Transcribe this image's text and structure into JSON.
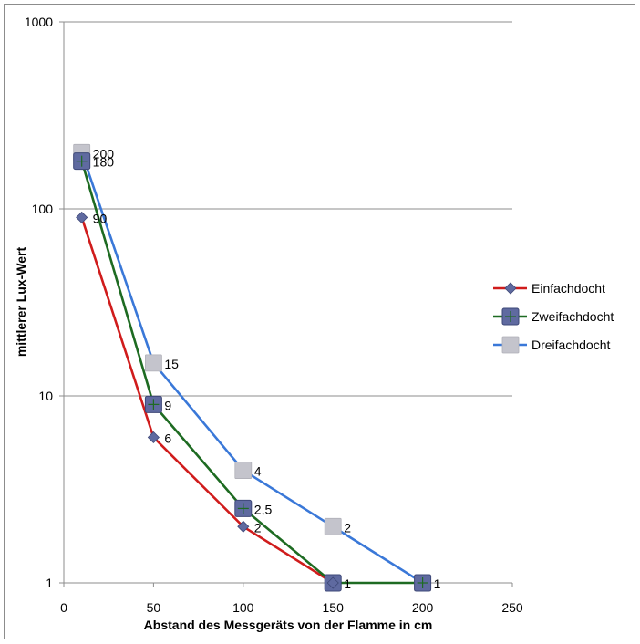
{
  "chart_data": {
    "type": "line",
    "xlabel": "Abstand des Messgeräts von der Flamme in cm",
    "ylabel": "mittlerer Lux-Wert",
    "xlim": [
      0,
      250
    ],
    "ylim": [
      1,
      1000
    ],
    "yscale": "log",
    "x_ticks": [
      "0",
      "50",
      "100",
      "150",
      "200",
      "250"
    ],
    "y_ticks": [
      "1",
      "10",
      "100",
      "1000"
    ],
    "grid": "horizontal",
    "legend_position": "right",
    "series": [
      {
        "name": "Einfachdocht",
        "color": "#d01c1c",
        "marker": "diamond",
        "marker_color": "#5f6aa0",
        "points": [
          {
            "x": 10,
            "y": 90,
            "label": "90"
          },
          {
            "x": 50,
            "y": 6,
            "label": "6"
          },
          {
            "x": 100,
            "y": 2,
            "label": "2"
          },
          {
            "x": 150,
            "y": 1,
            "label": "1"
          }
        ]
      },
      {
        "name": "Zweifachdocht",
        "color": "#1e6b22",
        "marker": "square-plus",
        "marker_color": "#5f6aa0",
        "points": [
          {
            "x": 10,
            "y": 180,
            "label": "180"
          },
          {
            "x": 50,
            "y": 9,
            "label": "9"
          },
          {
            "x": 100,
            "y": 2.5,
            "label": "2,5"
          },
          {
            "x": 150,
            "y": 1,
            "label": ""
          },
          {
            "x": 200,
            "y": 1,
            "label": ""
          }
        ]
      },
      {
        "name": "Dreifachdocht",
        "color": "#3a78d8",
        "marker": "square",
        "marker_color": "#c4c4cc",
        "points": [
          {
            "x": 10,
            "y": 200,
            "label": "200"
          },
          {
            "x": 50,
            "y": 15,
            "label": "15"
          },
          {
            "x": 100,
            "y": 4,
            "label": "4"
          },
          {
            "x": 150,
            "y": 2,
            "label": "2"
          },
          {
            "x": 200,
            "y": 1,
            "label": "1"
          }
        ]
      }
    ]
  }
}
